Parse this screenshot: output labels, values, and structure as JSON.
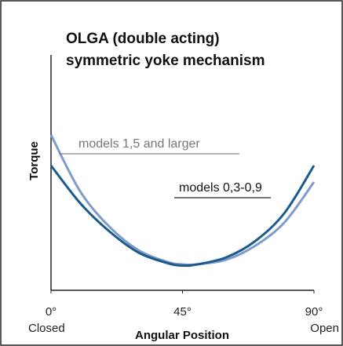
{
  "chart_data": {
    "type": "line",
    "title": [
      "OLGA (double acting)",
      "symmetric yoke mechanism"
    ],
    "x_label": "Angular Position",
    "y_label": "Torque",
    "x": [
      0,
      10,
      20,
      30,
      40,
      45,
      50,
      60,
      70,
      80,
      90
    ],
    "series": [
      {
        "name": "models 1,5 and larger",
        "color": "#7f9bc8",
        "values": [
          66,
          42,
          27,
          17,
          12,
          11,
          11,
          13,
          19,
          29,
          46
        ]
      },
      {
        "name": "models 0,3-0,9",
        "color": "#1a5a8c",
        "values": [
          53,
          37,
          25,
          16,
          11.5,
          10.5,
          11,
          14,
          21,
          33,
          53
        ]
      }
    ],
    "xlim": [
      0,
      90
    ],
    "xticks": [
      {
        "value": 0,
        "label": "0°"
      },
      {
        "value": 45,
        "label": "45°"
      },
      {
        "value": 90,
        "label": "90°"
      }
    ],
    "x_end_labels": {
      "left": "Closed",
      "right": "Open"
    },
    "ylim": [
      0,
      100
    ]
  }
}
